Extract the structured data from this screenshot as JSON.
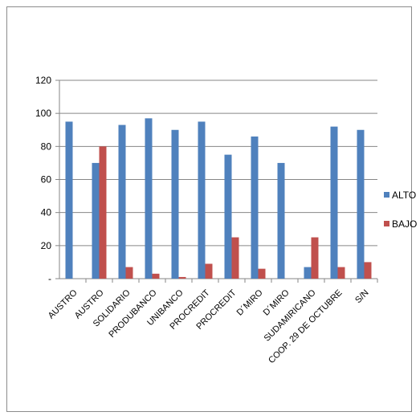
{
  "chart_data": {
    "type": "bar",
    "categories": [
      "AUSTRO",
      "AUSTRO",
      "SOLIDARIO",
      "PRODUBANCO",
      "UNIBANCO",
      "PROCREDIT",
      "PROCREDIT",
      "D´MIRO",
      "D´MIRO",
      "SUDAMIRICANO",
      "COOP. 29 DE OCTUBRE",
      "S/N"
    ],
    "series": [
      {
        "name": "ALTO",
        "color": "#4f81bd",
        "values": [
          95,
          70,
          93,
          97,
          90,
          95,
          75,
          86,
          70,
          7,
          92,
          90
        ]
      },
      {
        "name": "BAJO",
        "color": "#c0504d",
        "values": [
          0,
          80,
          7,
          3,
          1,
          9,
          25,
          6,
          0,
          25,
          7,
          10
        ]
      }
    ],
    "yticks": [
      0,
      20,
      40,
      60,
      80,
      100,
      120
    ],
    "ytick_labels": [
      "-",
      "20",
      "40",
      "60",
      "80",
      "100",
      "120"
    ],
    "ylim": [
      0,
      120
    ],
    "grid": true,
    "legend": "right"
  }
}
